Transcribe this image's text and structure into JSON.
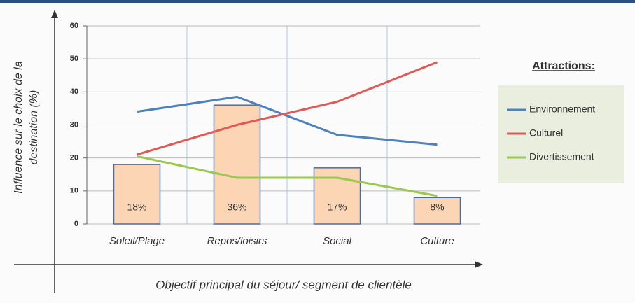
{
  "chart_data": {
    "type": "bar-line",
    "ylabel": [
      "Influence sur le choix de la",
      "destination (%)"
    ],
    "xlabel": "Objectif principal du séjour/ segment de clientèle",
    "categories": [
      "Soleil/Plage",
      "Repos/loisirs",
      "Social",
      "Culture"
    ],
    "bars": {
      "values": [
        18,
        36,
        17,
        8
      ],
      "value_labels": [
        "18%",
        "36%",
        "17%",
        "8%"
      ],
      "color": "#fcd5b5",
      "edge": "#4a6fa5"
    },
    "legend_title": "Attractions:",
    "series": [
      {
        "name": "Environnement",
        "color": "#4f81bd",
        "values": [
          34,
          38.5,
          27,
          24
        ]
      },
      {
        "name": "Culturel",
        "color": "#e05a55",
        "values": [
          21,
          30,
          37,
          49
        ]
      },
      {
        "name": "Divertissement",
        "color": "#9bc850",
        "values": [
          20.5,
          14,
          14,
          8.5
        ]
      }
    ],
    "ylim": [
      0,
      60
    ],
    "yticks": [
      0,
      10,
      20,
      30,
      40,
      50,
      60
    ],
    "grid": true
  }
}
